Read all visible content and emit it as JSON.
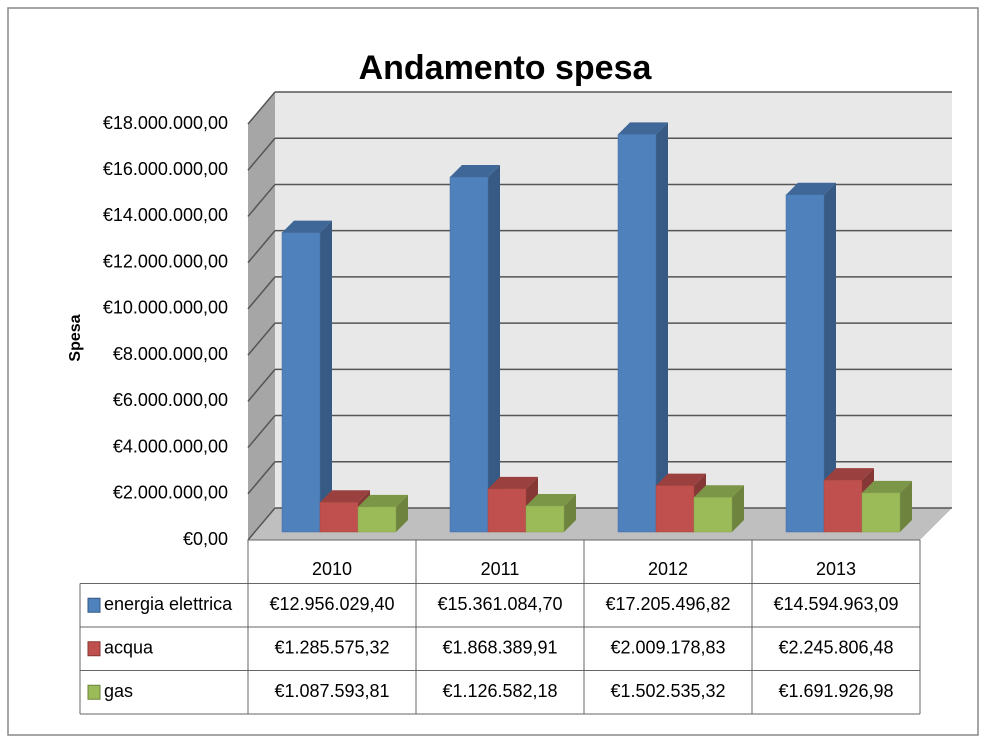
{
  "chart_data": {
    "type": "bar3d",
    "title": "Andamento spesa",
    "y_label": "Spesa",
    "categories": [
      "2010",
      "2011",
      "2012",
      "2013"
    ],
    "series": [
      {
        "name": "energia elettrica",
        "color": "#4f81bd",
        "values": [
          12956029.4,
          15361084.7,
          17205496.82,
          14594963.09
        ],
        "value_labels": [
          "€12.956.029,40",
          "€15.361.084,70",
          "€17.205.496,82",
          "€14.594.963,09"
        ]
      },
      {
        "name": "acqua",
        "color": "#c0504d",
        "values": [
          1285575.32,
          1868389.91,
          2009178.83,
          2245806.48
        ],
        "value_labels": [
          "€1.285.575,32",
          "€1.868.389,91",
          "€2.009.178,83",
          "€2.245.806,48"
        ]
      },
      {
        "name": "gas",
        "color": "#9bbb59",
        "values": [
          1087593.81,
          1126582.18,
          1502535.32,
          1691926.98
        ],
        "value_labels": [
          "€1.087.593,81",
          "€1.126.582,18",
          "€1.502.535,32",
          "€1.691.926,98"
        ]
      }
    ],
    "ylim": [
      0,
      18000000
    ],
    "yticks": [
      {
        "value": 0,
        "label": "€0,00"
      },
      {
        "value": 2000000,
        "label": "€2.000.000,00"
      },
      {
        "value": 4000000,
        "label": "€4.000.000,00"
      },
      {
        "value": 6000000,
        "label": "€6.000.000,00"
      },
      {
        "value": 8000000,
        "label": "€8.000.000,00"
      },
      {
        "value": 10000000,
        "label": "€10.000.000,00"
      },
      {
        "value": 12000000,
        "label": "€12.000.000,00"
      },
      {
        "value": 14000000,
        "label": "€14.000.000,00"
      },
      {
        "value": 16000000,
        "label": "€16.000.000,00"
      },
      {
        "value": 18000000,
        "label": "€18.000.000,00"
      }
    ],
    "grid": true
  }
}
